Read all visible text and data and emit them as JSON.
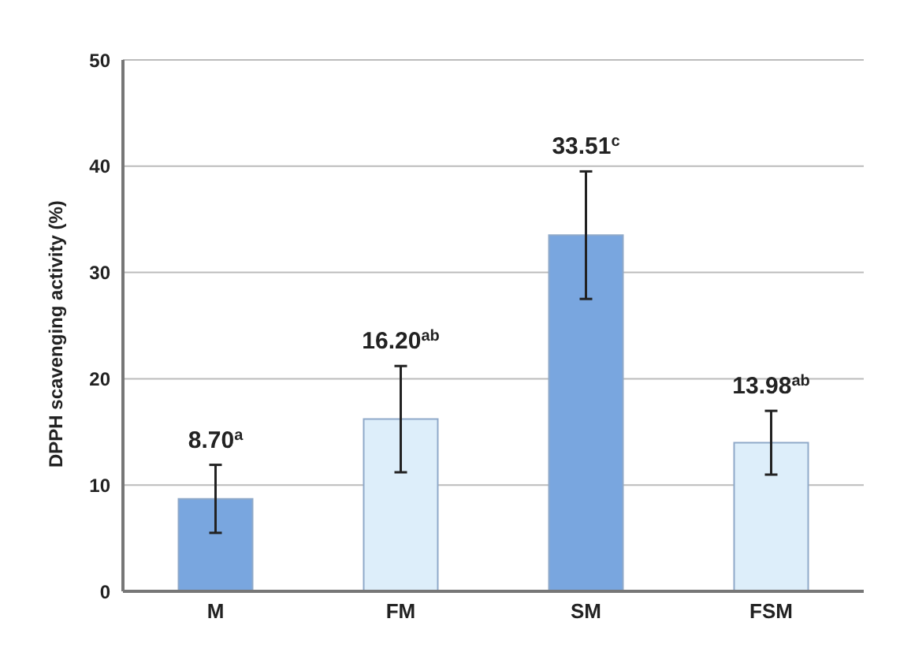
{
  "chart_data": {
    "type": "bar",
    "ylabel": "DPPH scavenging activity (%)",
    "categories": [
      "M",
      "FM",
      "SM",
      "FSM"
    ],
    "values": [
      8.7,
      16.2,
      33.51,
      13.98
    ],
    "colors": [
      "#79a6df",
      "#ddeefa",
      "#79a6df",
      "#ddeefa"
    ],
    "errors": [
      3.2,
      5.0,
      6.0,
      3.0
    ],
    "value_labels": [
      "8.70$^{a}$",
      "16.20$^{ab}$",
      "33.51$^{c}$",
      "13.98$^{ab}$"
    ],
    "ylim": [
      0,
      50
    ],
    "yticks": [
      0,
      10,
      20,
      30,
      40,
      50
    ],
    "grid": "y"
  }
}
